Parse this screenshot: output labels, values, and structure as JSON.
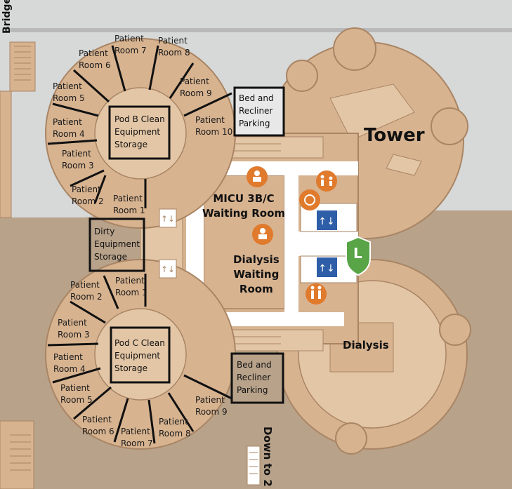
{
  "map": {
    "colors": {
      "background": "#d7d8d8",
      "lower_area": "#b8a28a",
      "building": "#d7b390",
      "floor": "#e3c6a6",
      "corridor": "#ffffff",
      "wall": "#a98564",
      "outline": "#111111",
      "amenity_orange": "#e07a2c",
      "elevator_blue": "#2e5ea8",
      "lobby_green": "#58a447"
    },
    "labels": {
      "bridge": "Bridge",
      "tower": "Tower",
      "micu_waiting": [
        "MICU 3B/C",
        "Waiting Room"
      ],
      "dialysis_waiting": [
        "Dialysis",
        "Waiting",
        "Room"
      ],
      "dialysis": "Dialysis",
      "down_to_2": "Down to 2",
      "lobby_letter": "L"
    },
    "storage": {
      "pod_b": [
        "Pod B Clean",
        "Equipment",
        "Storage"
      ],
      "dirty": [
        "Dirty",
        "Equipment",
        "Storage"
      ],
      "pod_c": [
        "Pod C Clean",
        "Equipment",
        "Storage"
      ],
      "parking_top": [
        "Bed and",
        "Recliner",
        "Parking"
      ],
      "parking_bottom": [
        "Bed and",
        "Recliner",
        "Parking"
      ]
    },
    "pod_b_rooms": [
      [
        "Patient",
        "Room 1"
      ],
      [
        "Patient",
        "Room 2"
      ],
      [
        "Patient",
        "Room 3"
      ],
      [
        "Patient",
        "Room 4"
      ],
      [
        "Patient",
        "Room 5"
      ],
      [
        "Patient",
        "Room 6"
      ],
      [
        "Patient",
        "Room 7"
      ],
      [
        "Patient",
        "Room 8"
      ],
      [
        "Patient",
        "Room 9"
      ],
      [
        "Patient",
        "Room 10"
      ]
    ],
    "pod_c_rooms": [
      [
        "Patient",
        "Room 1"
      ],
      [
        "Patient",
        "Room 2"
      ],
      [
        "Patient",
        "Room 3"
      ],
      [
        "Patient",
        "Room 4"
      ],
      [
        "Patient",
        "Room 5"
      ],
      [
        "Patient",
        "Room 6"
      ],
      [
        "Patient",
        "Room 7"
      ],
      [
        "Patient",
        "Room 8"
      ],
      [
        "Patient",
        "Room 9"
      ]
    ],
    "icons": [
      "waiting-room-icon",
      "restroom-family-icon",
      "nursing-room-icon",
      "elevator-icon",
      "restroom-icon",
      "lobby-marker-icon"
    ]
  }
}
